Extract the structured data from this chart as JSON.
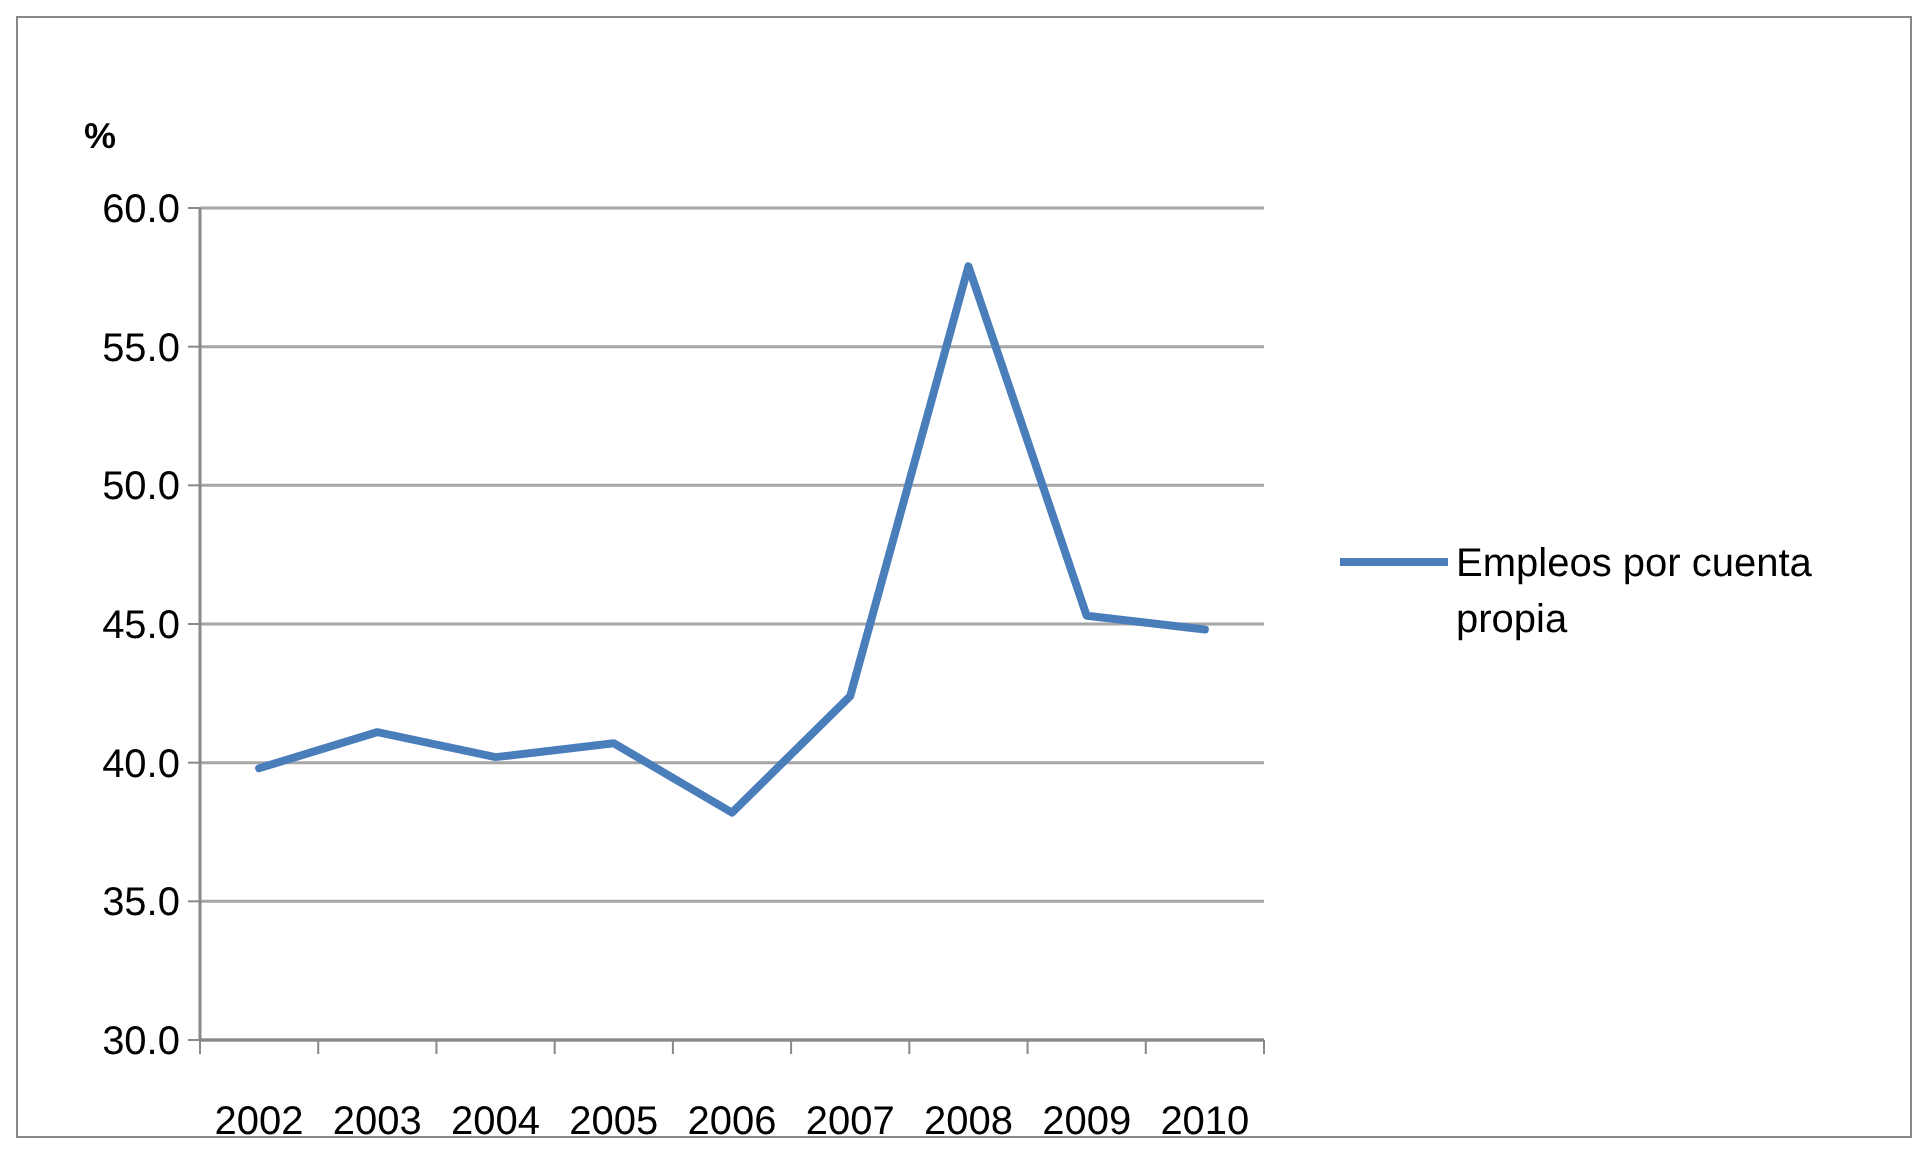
{
  "chart_data": {
    "type": "line",
    "ylabel": "%",
    "categories": [
      "2002",
      "2003",
      "2004",
      "2005",
      "2006",
      "2007",
      "2008",
      "2009",
      "2010"
    ],
    "series": [
      {
        "name": "Empleos por cuenta propia",
        "color": "#4a7ebb",
        "values": [
          39.8,
          41.1,
          40.2,
          40.7,
          38.2,
          42.4,
          57.9,
          45.3,
          44.8
        ]
      }
    ],
    "ylim": [
      30,
      60
    ],
    "yticks": [
      {
        "value": 30,
        "label": "30.0"
      },
      {
        "value": 35,
        "label": "35.0"
      },
      {
        "value": 40,
        "label": "40.0"
      },
      {
        "value": 45,
        "label": "45.0"
      },
      {
        "value": 50,
        "label": "50.0"
      },
      {
        "value": 55,
        "label": "55.0"
      },
      {
        "value": 60,
        "label": "60.0"
      }
    ],
    "grid": "y",
    "legend": "right",
    "marker": "none",
    "line_style": "solid"
  }
}
